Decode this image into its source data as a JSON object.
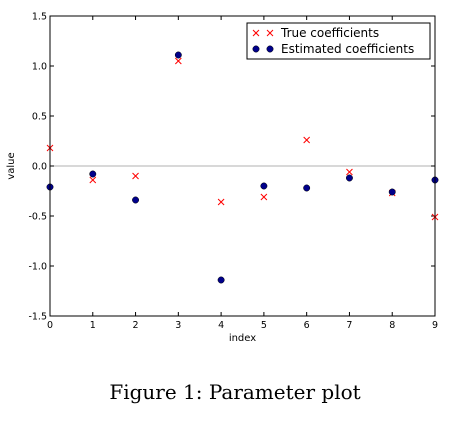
{
  "caption": "Figure 1: Parameter plot",
  "chart_data": {
    "type": "scatter",
    "title": "",
    "xlabel": "index",
    "ylabel": "value",
    "xlim": [
      0,
      9
    ],
    "ylim": [
      -1.5,
      1.5
    ],
    "xticks": [
      "0",
      "1",
      "2",
      "3",
      "4",
      "5",
      "6",
      "7",
      "8",
      "9"
    ],
    "yticks": [
      "1.5",
      "1.0",
      "0.5",
      "0.0",
      "-0.5",
      "-1.0",
      "-1.5"
    ],
    "grid": false,
    "reference_line_y": 0,
    "legend_position": "top-right",
    "series": [
      {
        "name": "True coefficients",
        "marker": "x",
        "color": "#ff0000",
        "x": [
          0,
          1,
          2,
          3,
          4,
          5,
          6,
          7,
          8,
          9
        ],
        "y": [
          0.18,
          -0.14,
          -0.1,
          1.05,
          -0.36,
          -0.31,
          0.26,
          -0.06,
          -0.27,
          -0.51
        ]
      },
      {
        "name": "Estimated coefficients",
        "marker": "circle",
        "color": "#00008b",
        "x": [
          0,
          1,
          2,
          3,
          4,
          5,
          6,
          7,
          8,
          9
        ],
        "y": [
          -0.21,
          -0.08,
          -0.34,
          1.11,
          -1.14,
          -0.2,
          -0.22,
          -0.12,
          -0.26,
          -0.14
        ]
      }
    ]
  }
}
